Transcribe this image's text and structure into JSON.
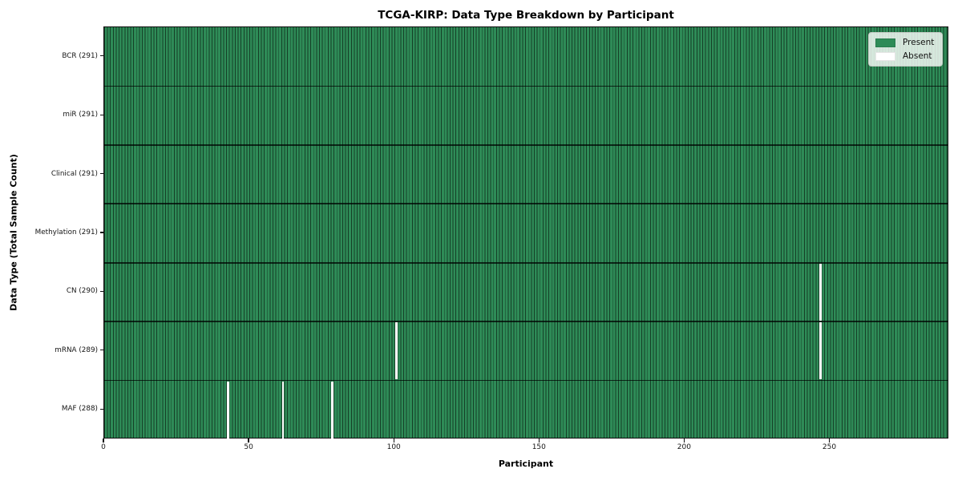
{
  "chart_data": {
    "type": "heatmap",
    "title": "TCGA-KIRP: Data Type Breakdown by Participant",
    "xlabel": "Participant",
    "ylabel": "Data Type (Total Sample Count)",
    "x_ticks": [
      0,
      50,
      100,
      150,
      200,
      250
    ],
    "xlim": [
      0,
      291
    ],
    "n_participants": 291,
    "grid": false,
    "legend_position": "upper right",
    "rows": [
      {
        "name": "BCR",
        "label": "BCR (291)",
        "present_count": 291,
        "absent_participants": []
      },
      {
        "name": "miR",
        "label": "miR (291)",
        "present_count": 291,
        "absent_participants": []
      },
      {
        "name": "Clinical",
        "label": "Clinical (291)",
        "present_count": 291,
        "absent_participants": []
      },
      {
        "name": "Methylation",
        "label": "Methylation (291)",
        "present_count": 291,
        "absent_participants": []
      },
      {
        "name": "CN",
        "label": "CN (290)",
        "present_count": 290,
        "absent_participants": [
          246
        ]
      },
      {
        "name": "mRNA",
        "label": "mRNA (289)",
        "present_count": 289,
        "absent_participants": [
          100,
          246
        ]
      },
      {
        "name": "MAF",
        "label": "MAF (288)",
        "present_count": 288,
        "absent_participants": [
          42,
          61,
          78
        ]
      }
    ],
    "legend": [
      {
        "label": "Present",
        "color": "#2e8b57"
      },
      {
        "label": "Absent",
        "color": "#ffffff"
      }
    ],
    "colors": {
      "present": "#2e8b57",
      "absent": "#ffffff",
      "bar_edge": "rgba(0,0,0,0.55)",
      "row_separator": "rgba(0,0,0,0.72)",
      "spine": "#101010"
    }
  }
}
